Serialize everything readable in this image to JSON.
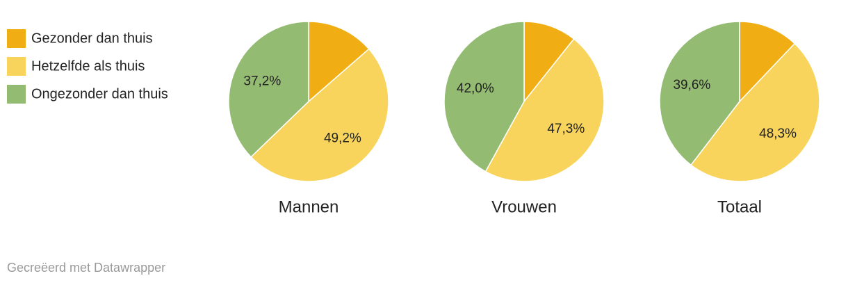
{
  "legend": {
    "categories": [
      "Gezonder dan thuis",
      "Hetzelfde als thuis",
      "Ongezonder dan thuis"
    ],
    "colors": [
      "#f0ae14",
      "#f8d45c",
      "#93bb72"
    ]
  },
  "chart_data": [
    {
      "type": "pie",
      "title": "Mannen",
      "values": [
        13.6,
        49.2,
        37.2
      ],
      "value_labels": [
        null,
        "49,2%",
        "37,2%"
      ]
    },
    {
      "type": "pie",
      "title": "Vrouwen",
      "values": [
        10.7,
        47.3,
        42.0
      ],
      "value_labels": [
        null,
        "47,3%",
        "42,0%"
      ]
    },
    {
      "type": "pie",
      "title": "Totaal",
      "values": [
        12.1,
        48.3,
        39.6
      ],
      "value_labels": [
        null,
        "48,3%",
        "39,6%"
      ]
    }
  ],
  "credit": "Gecreëerd met Datawrapper"
}
